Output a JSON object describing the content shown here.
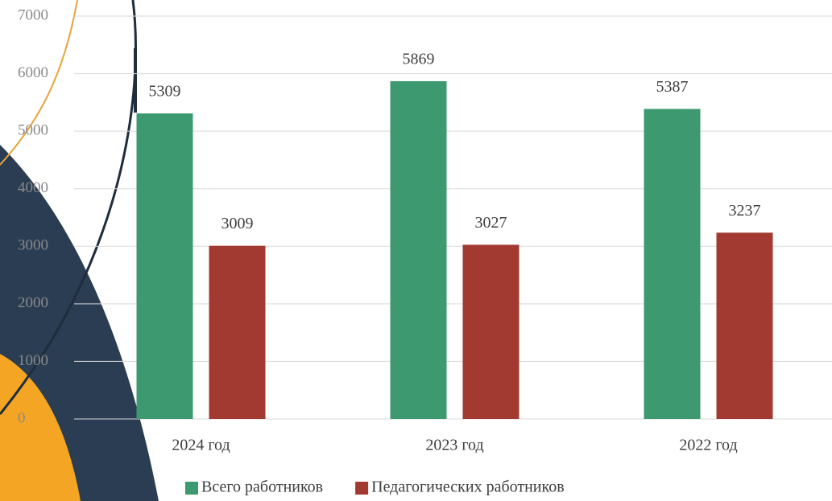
{
  "chart_data": {
    "type": "bar",
    "categories": [
      "2024 год",
      "2023 год",
      "2022 год"
    ],
    "series": [
      {
        "name": "Всего работников",
        "color": "#3d9970",
        "values": [
          5309,
          5869,
          5387
        ]
      },
      {
        "name": "Педагогических работников",
        "color": "#a33a32",
        "values": [
          3009,
          3027,
          3237
        ]
      }
    ],
    "ylim": [
      0,
      7000
    ],
    "yticks": [
      0,
      1000,
      2000,
      3000,
      4000,
      5000,
      6000,
      7000
    ],
    "grid": true,
    "legend": "bottom"
  }
}
